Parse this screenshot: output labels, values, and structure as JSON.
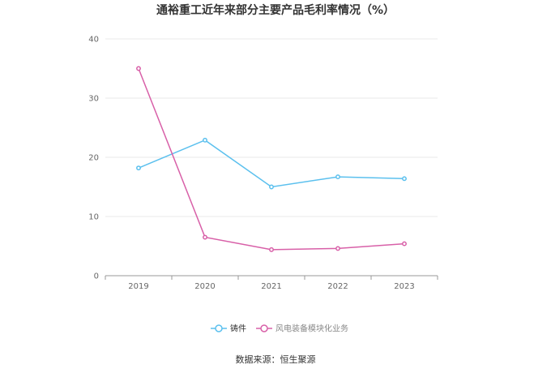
{
  "chart_data": {
    "type": "line",
    "title": "通裕重工近年来部分主要产品毛利率情况（%）",
    "xlabel": "",
    "ylabel": "",
    "categories": [
      "2019",
      "2020",
      "2021",
      "2022",
      "2023"
    ],
    "ylim": [
      0,
      40
    ],
    "yticks": [
      0,
      10,
      20,
      30,
      40
    ],
    "grid": true,
    "legend": "bottom",
    "series": [
      {
        "name": "铸件",
        "color": "#5bc0ee",
        "values": [
          18.2,
          22.9,
          15.0,
          16.7,
          16.4
        ]
      },
      {
        "name": "风电装备模块化业务",
        "color": "#d860a8",
        "values": [
          35.0,
          6.5,
          4.4,
          4.6,
          5.4
        ]
      }
    ]
  },
  "source_text": "数据来源：恒生聚源"
}
